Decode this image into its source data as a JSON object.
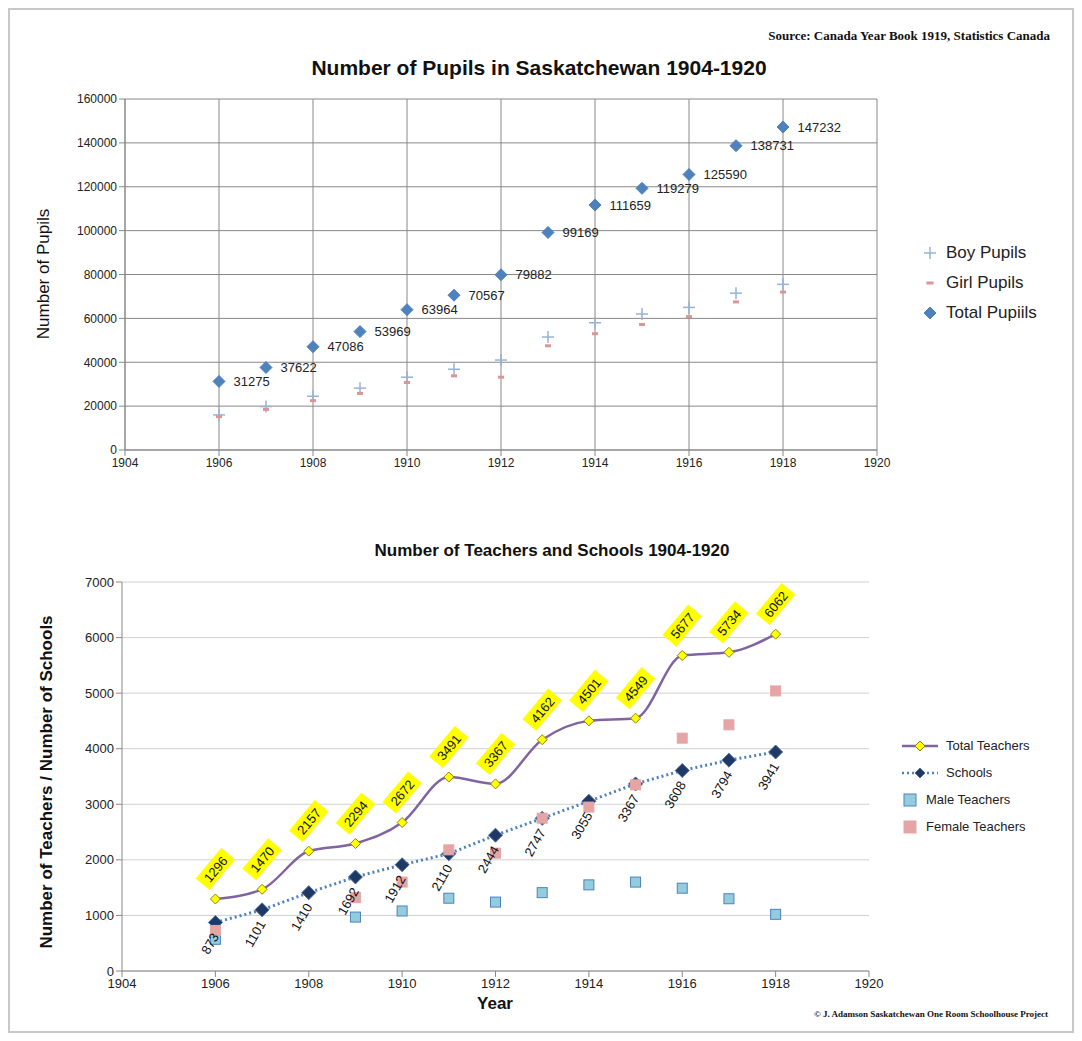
{
  "chart_data": [
    {
      "type": "scatter",
      "title": "Number of Pupils in Saskatchewan 1904-1920",
      "annotations": [
        "Source: Canada Year Book 1919, Statistics Canada"
      ],
      "y_label": "Number of Pupils",
      "x": [
        1906,
        1907,
        1908,
        1909,
        1910,
        1911,
        1912,
        1913,
        1914,
        1915,
        1916,
        1917,
        1918
      ],
      "series": [
        {
          "name": "Boy Pupils",
          "type": "scatter",
          "marker": "cross",
          "color": "#95b3d7",
          "values": [
            16000,
            19800,
            24500,
            28200,
            33200,
            36800,
            41000,
            51500,
            58000,
            62000,
            65000,
            71500,
            75500
          ]
        },
        {
          "name": "Girl Pupils",
          "type": "scatter",
          "marker": "dash",
          "color": "#d99694",
          "values": [
            15200,
            18500,
            22500,
            25800,
            30800,
            33800,
            33200,
            47500,
            53000,
            57200,
            60800,
            67500,
            72000
          ]
        },
        {
          "name": "Total Pupiils",
          "type": "scatter",
          "marker": "diamond",
          "color": "#4f81bd",
          "data_labels": true,
          "values": [
            31275,
            37622,
            47086,
            53969,
            63964,
            70567,
            79882,
            99169,
            111659,
            119279,
            125590,
            138731,
            147232
          ]
        }
      ],
      "xlim": [
        1904,
        1920
      ],
      "xticks": [
        1904,
        1906,
        1908,
        1910,
        1912,
        1914,
        1916,
        1918,
        1920
      ],
      "ylim": [
        0,
        160000
      ],
      "yticks": [
        0,
        20000,
        40000,
        60000,
        80000,
        100000,
        120000,
        140000,
        160000
      ],
      "grid": true,
      "legend": "right"
    },
    {
      "type": "line",
      "title": "Number of Teachers and Schools 1904-1920",
      "annotations": [
        "© J. Adamson Saskatchewan One Room Schoolhouse Project"
      ],
      "x_label": "Year",
      "y_label": "Number of Teachers / Number of Schools",
      "x": [
        1906,
        1907,
        1908,
        1909,
        1910,
        1911,
        1912,
        1913,
        1914,
        1915,
        1916,
        1917,
        1918
      ],
      "series": [
        {
          "name": "Total Teachers",
          "type": "line",
          "marker": "diamond",
          "line_style": "solid",
          "color": "#8064a2",
          "data_labels": true,
          "values": [
            1296,
            1470,
            2157,
            2294,
            2672,
            3491,
            3367,
            4162,
            4501,
            4549,
            5677,
            5734,
            6062
          ]
        },
        {
          "name": "Schools",
          "type": "line",
          "marker": "diamond",
          "line_style": "dotted",
          "color": "#1f3864",
          "data_labels": true,
          "values": [
            873,
            1101,
            1410,
            1692,
            1912,
            2110,
            2444,
            2747,
            3055,
            3367,
            3608,
            3794,
            3941
          ]
        },
        {
          "name": "Male Teachers",
          "type": "scatter",
          "marker": "square",
          "color": "#93cddd",
          "values": [
            570,
            null,
            null,
            970,
            1080,
            1310,
            1240,
            1410,
            1550,
            1600,
            1490,
            1300,
            1020
          ]
        },
        {
          "name": "Female Teachers",
          "type": "scatter",
          "marker": "square",
          "color": "#e6a5a5",
          "values": [
            730,
            null,
            null,
            1320,
            1600,
            2180,
            2120,
            2750,
            2950,
            3350,
            4190,
            4430,
            5040
          ]
        }
      ],
      "xlim": [
        1904,
        1920
      ],
      "xticks": [
        1904,
        1906,
        1908,
        1910,
        1912,
        1914,
        1916,
        1918,
        1920
      ],
      "ylim": [
        0,
        7000
      ],
      "yticks": [
        0,
        1000,
        2000,
        3000,
        4000,
        5000,
        6000,
        7000
      ],
      "grid": "y",
      "legend": "right"
    }
  ]
}
